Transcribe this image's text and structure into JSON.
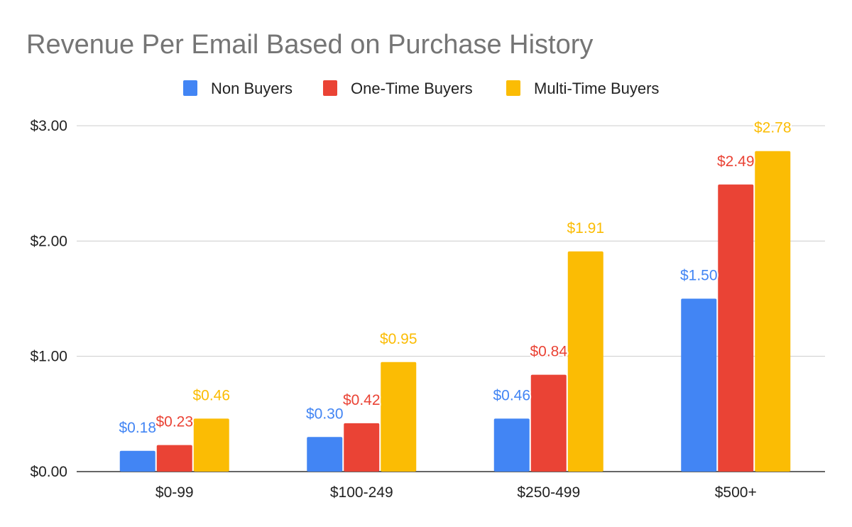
{
  "chart_data": {
    "type": "bar",
    "title": "Revenue Per Email Based on Purchase History",
    "categories": [
      "$0-99",
      "$100-249",
      "$250-499",
      "$500+"
    ],
    "series": [
      {
        "name": "Non Buyers",
        "color": "#4285f4",
        "values": [
          0.18,
          0.3,
          0.46,
          1.5
        ],
        "labels": [
          "$0.18",
          "$0.30",
          "$0.46",
          "$1.50"
        ]
      },
      {
        "name": "One-Time Buyers",
        "color": "#ea4335",
        "values": [
          0.23,
          0.42,
          0.84,
          2.49
        ],
        "labels": [
          "$0.23",
          "$0.42",
          "$0.84",
          "$2.49"
        ]
      },
      {
        "name": "Multi-Time Buyers",
        "color": "#fbbc04",
        "values": [
          0.46,
          0.95,
          1.91,
          2.78
        ],
        "labels": [
          "$0.46",
          "$0.95",
          "$1.91",
          "$2.78"
        ]
      }
    ],
    "yticks": [
      0,
      1,
      2,
      3
    ],
    "ytick_labels": [
      "$0.00",
      "$1.00",
      "$2.00",
      "$3.00"
    ],
    "ylim": [
      0,
      3
    ],
    "xlabel": "",
    "ylabel": "",
    "grid": true,
    "legend_position": "top"
  }
}
